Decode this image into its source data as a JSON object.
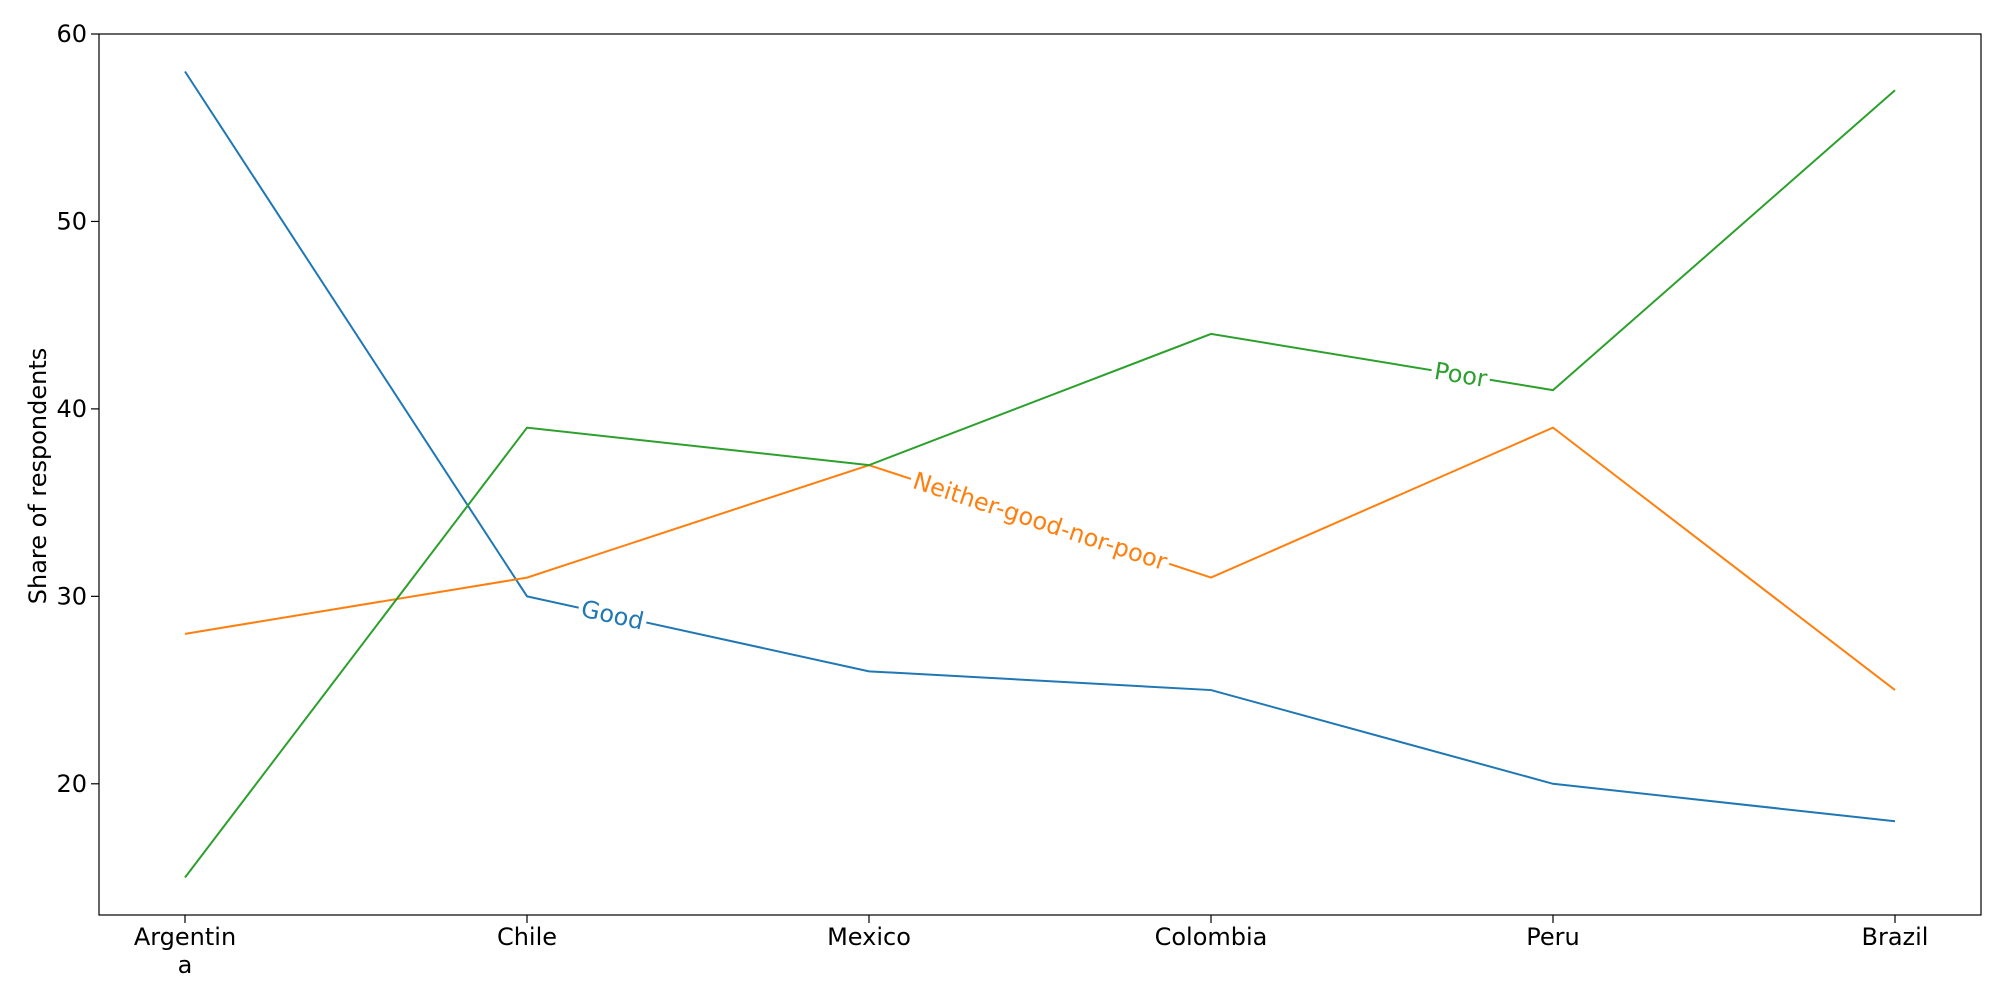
{
  "chart_data": {
    "type": "line",
    "title": "",
    "xlabel": "",
    "ylabel": "Share of respondents",
    "categories": [
      "Argentina",
      "Chile",
      "Mexico",
      "Colombia",
      "Peru",
      "Brazil"
    ],
    "ylim": [
      13,
      60
    ],
    "yticks": [
      20,
      30,
      40,
      50,
      60
    ],
    "grid": false,
    "legend": "none (series labelled inline on lines)",
    "series": [
      {
        "name": "Good",
        "color": "#1f77b4",
        "values": [
          58,
          30,
          26,
          25,
          20,
          18
        ]
      },
      {
        "name": "Neither-good-nor-poor",
        "color": "#ff7f0e",
        "values": [
          28,
          31,
          37,
          31,
          39,
          25
        ]
      },
      {
        "name": "Poor",
        "color": "#2ca02c",
        "values": [
          15,
          39,
          37,
          44,
          41,
          57
        ]
      }
    ]
  }
}
